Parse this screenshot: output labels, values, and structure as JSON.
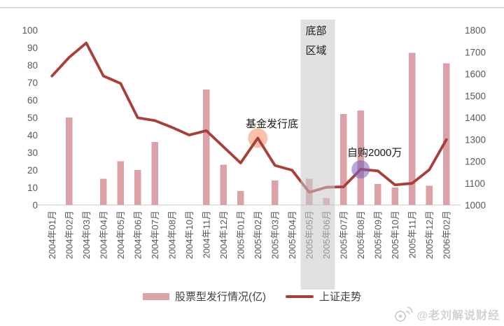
{
  "page": {
    "background": "#ffffff",
    "top_border_color": "#d9d9d9"
  },
  "chart_data": {
    "type": "combo",
    "categories": [
      "2004年01月",
      "2004年02月",
      "2004年03月",
      "2004年04月",
      "2004年05月",
      "2004年06月",
      "2004年07月",
      "2004年08月",
      "2004年10月",
      "2004年11月",
      "2004年12月",
      "2005年01月",
      "2005年02月",
      "2005年03月",
      "2005年04月",
      "2005年05月",
      "2005年06月",
      "2005年07月",
      "2005年08月",
      "2005年09月",
      "2005年10月",
      "2005年11月",
      "2005年12月",
      "2006年02月"
    ],
    "series": [
      {
        "name": "股票型发行情况(亿)",
        "type": "bar",
        "axis": "left",
        "color": "#daa2a6",
        "values": [
          0,
          50,
          0,
          15,
          25,
          20,
          36,
          0,
          0,
          66,
          23,
          8,
          0,
          14,
          0,
          15,
          4,
          52,
          54,
          12,
          10,
          87,
          11,
          81
        ]
      },
      {
        "name": "上证走势",
        "type": "line",
        "axis": "right",
        "color": "#aa3e38",
        "values": [
          1590,
          1675,
          1741,
          1590,
          1556,
          1399,
          1386,
          1355,
          1320,
          1340,
          1266,
          1192,
          1306,
          1181,
          1159,
          1058,
          1081,
          1083,
          1163,
          1156,
          1092,
          1099,
          1161,
          1299
        ]
      }
    ],
    "left_axis": {
      "min": 0,
      "max": 100,
      "ticks": [
        0,
        10,
        20,
        30,
        40,
        50,
        60,
        70,
        80,
        90,
        100
      ]
    },
    "right_axis": {
      "min": 1000,
      "max": 1800,
      "ticks": [
        1000,
        1100,
        1200,
        1300,
        1400,
        1500,
        1600,
        1700,
        1800
      ]
    },
    "grid": "off",
    "legend_position": "bottom",
    "highlight_band": {
      "lines": [
        "底部",
        "区域"
      ],
      "start_index": 15,
      "end_index": 16,
      "color": "rgba(199,199,199,0.55)"
    },
    "markers": [
      {
        "label": "基金发行底",
        "index": 12,
        "value": 1306,
        "axis": "right",
        "circle_color": "rgba(243,132,85,0.5)",
        "radius": 14,
        "layer": "below-line"
      },
      {
        "label": "自购2000万",
        "index": 18,
        "value": 1163,
        "axis": "right",
        "circle_color": "rgba(120,96,190,0.55)",
        "radius": 13,
        "layer": "above-line"
      }
    ]
  },
  "annotations": {
    "fund_bottom": "基金发行底",
    "self_purchase": "自购2000万",
    "band_line1": "底部",
    "band_line2": "区域"
  },
  "legend": {
    "bar_label": "股票型发行情况(亿)",
    "line_label": "上证走势"
  },
  "watermark": {
    "icon": "weibo-eye-icon",
    "handle": "@老刘解说财经"
  }
}
